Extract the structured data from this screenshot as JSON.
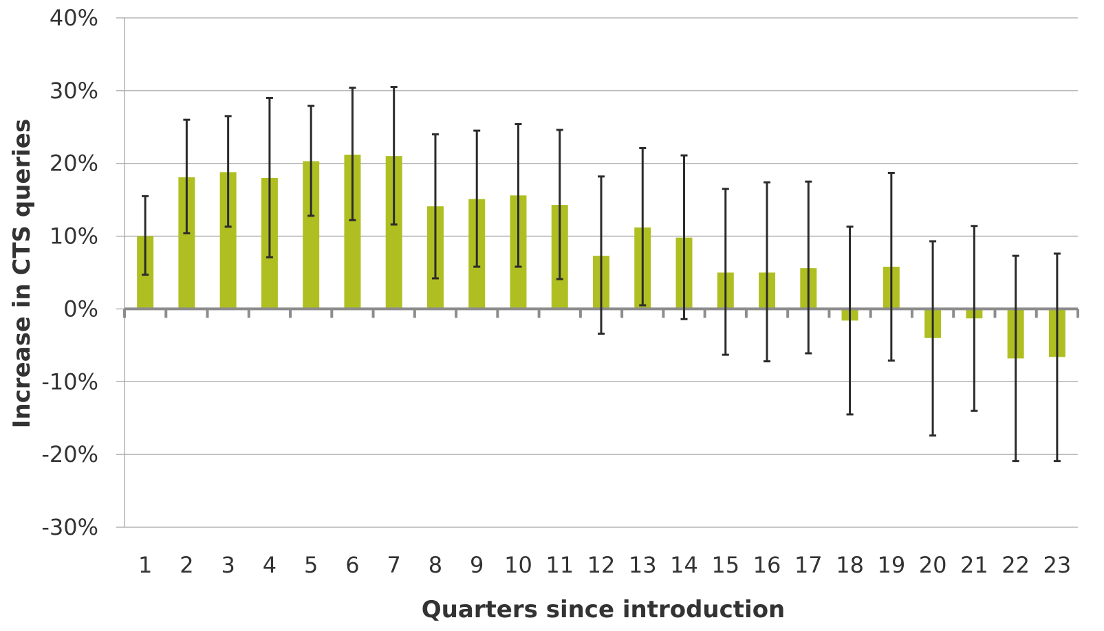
{
  "chart_data": {
    "type": "bar",
    "xlabel": "Quarters since introduction",
    "ylabel": "Increase in CTS queries",
    "ylim": [
      -30,
      40
    ],
    "y_ticks": [
      40,
      30,
      20,
      10,
      0,
      -10,
      -20,
      -30
    ],
    "y_tick_labels": [
      "40%",
      "30%",
      "20%",
      "10%",
      "0%",
      "-10%",
      "-20%",
      "-30%"
    ],
    "grid": true,
    "legend": "none",
    "categories": [
      "1",
      "2",
      "3",
      "4",
      "5",
      "6",
      "7",
      "8",
      "9",
      "10",
      "11",
      "12",
      "13",
      "14",
      "15",
      "16",
      "17",
      "18",
      "19",
      "20",
      "21",
      "22",
      "23"
    ],
    "series": [
      {
        "values": [
          10.0,
          18.1,
          18.8,
          18.0,
          20.3,
          21.2,
          21.0,
          14.1,
          15.1,
          15.6,
          14.3,
          7.3,
          11.2,
          9.8,
          5.0,
          5.0,
          5.6,
          -1.6,
          5.8,
          -4.0,
          -1.3,
          -6.8,
          -6.6
        ],
        "error_low": [
          4.7,
          10.4,
          11.3,
          7.1,
          12.8,
          12.2,
          11.6,
          4.2,
          5.8,
          5.8,
          4.1,
          -3.4,
          0.5,
          -1.4,
          -6.3,
          -7.2,
          -6.1,
          -14.5,
          -7.1,
          -17.4,
          -14.0,
          -20.9,
          -20.9
        ],
        "error_high": [
          15.5,
          26.0,
          26.5,
          29.0,
          27.9,
          30.4,
          30.5,
          24.0,
          24.5,
          25.4,
          24.6,
          18.2,
          22.1,
          21.1,
          16.5,
          17.4,
          17.5,
          11.3,
          18.7,
          9.3,
          11.4,
          7.3,
          7.6
        ]
      }
    ],
    "colors": {
      "bar": "#afbf22",
      "error": "#2b2b2b",
      "grid": "#a6a6a6",
      "zero_axis": "#8c8c8c",
      "axis": "#a6a6a6"
    }
  }
}
